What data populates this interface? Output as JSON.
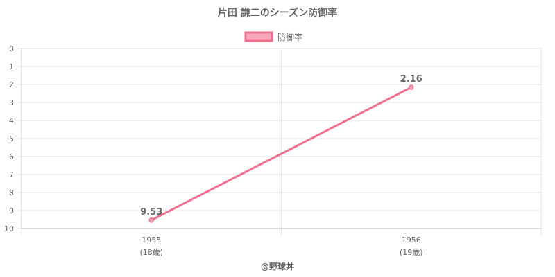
{
  "chart_data": {
    "type": "line",
    "title": "片田 謙二のシーズン防御率",
    "legend": {
      "position": "top",
      "label": "防御率"
    },
    "x": [
      {
        "year": "1955",
        "age": "(18歳)"
      },
      {
        "year": "1956",
        "age": "(19歳)"
      }
    ],
    "series": [
      {
        "name": "防御率",
        "values": [
          9.53,
          2.16
        ],
        "color": "#f06f8d",
        "fill": "#f7a8ba"
      }
    ],
    "ylim": [
      0,
      10
    ],
    "y_ticks": [
      0,
      1,
      2,
      3,
      4,
      5,
      6,
      7,
      8,
      9,
      10
    ],
    "y_reversed": true,
    "grid": true
  },
  "footer": "@野球丼"
}
